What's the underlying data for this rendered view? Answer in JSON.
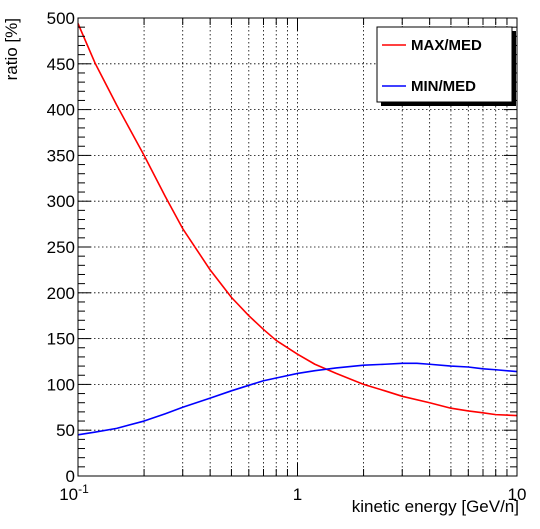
{
  "chart_data": {
    "type": "line",
    "xlabel": "kinetic energy [GeV/n]",
    "ylabel": "ratio [%]",
    "x_scale": "log",
    "xlim": [
      0.1,
      10
    ],
    "ylim": [
      0,
      500
    ],
    "grid": true,
    "legend_position": "top-right",
    "x_tick_labels": [
      {
        "value": 0.1,
        "base": "10",
        "exp": "-1"
      },
      {
        "value": 1,
        "base": "1",
        "exp": ""
      },
      {
        "value": 10,
        "base": "10",
        "exp": ""
      }
    ],
    "y_ticks": [
      0,
      50,
      100,
      150,
      200,
      250,
      300,
      350,
      400,
      450,
      500
    ],
    "series": [
      {
        "name": "MAX/MED",
        "color": "#ff0000",
        "x": [
          0.1,
          0.12,
          0.15,
          0.2,
          0.25,
          0.3,
          0.4,
          0.5,
          0.6,
          0.7,
          0.8,
          1.0,
          1.2,
          1.5,
          2.0,
          2.5,
          3.0,
          4.0,
          5.0,
          6.0,
          7.0,
          8.0,
          10.0
        ],
        "y": [
          494,
          450,
          405,
          350,
          305,
          270,
          225,
          195,
          175,
          160,
          148,
          133,
          122,
          112,
          100,
          93,
          87,
          80,
          74,
          71,
          69,
          67,
          66
        ]
      },
      {
        "name": "MIN/MED",
        "color": "#0000ff",
        "x": [
          0.1,
          0.12,
          0.15,
          0.2,
          0.25,
          0.3,
          0.4,
          0.5,
          0.6,
          0.7,
          0.8,
          1.0,
          1.2,
          1.5,
          2.0,
          2.5,
          3.0,
          3.5,
          4.0,
          5.0,
          6.0,
          7.0,
          8.0,
          10.0
        ],
        "y": [
          45,
          48,
          52,
          60,
          68,
          75,
          85,
          93,
          99,
          104,
          107,
          112,
          115,
          118,
          121,
          122,
          123,
          123,
          122,
          120,
          119,
          117,
          116,
          114
        ]
      }
    ]
  }
}
